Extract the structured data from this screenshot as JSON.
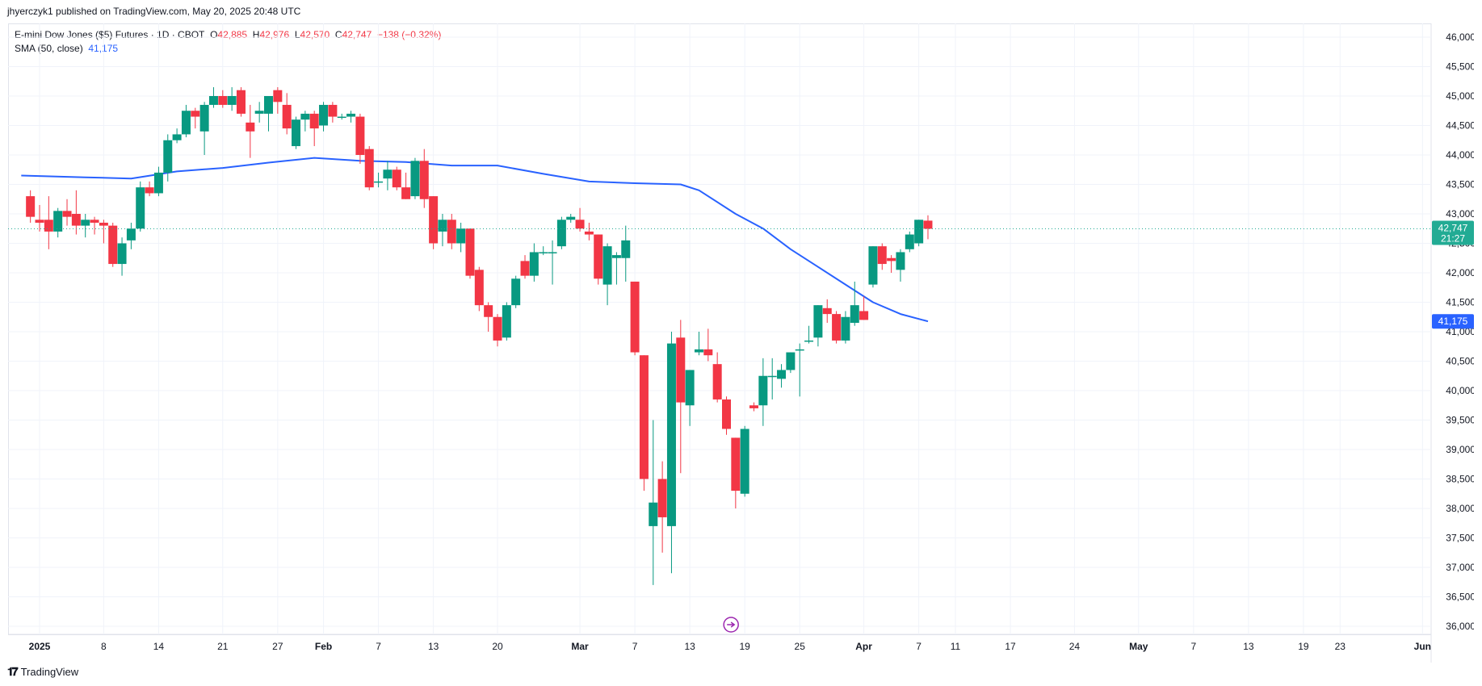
{
  "header": {
    "publisher": "jhyerczyk1 published on TradingView.com, May 20, 2025 20:48 UTC"
  },
  "legend": {
    "symbol": "E-mini Dow Jones ($5) Futures · 1D · CBOT",
    "o_label": "O",
    "o_value": "42,885",
    "h_label": "H",
    "h_value": "42,976",
    "l_label": "L",
    "l_value": "42,570",
    "c_label": "C",
    "c_value": "42,747",
    "change": "−138 (−0.32%)",
    "sma_label": "SMA (50, close)",
    "sma_value": "41,175"
  },
  "price_tag": {
    "price": "42,747",
    "countdown": "21:27"
  },
  "sma_tag": {
    "value": "41,175"
  },
  "footer": {
    "brand": "TradingView"
  },
  "colors": {
    "up": "#089981",
    "down": "#f23645",
    "sma": "#2962ff",
    "price_tag": "#22ab94",
    "grid": "#f0f3fa",
    "text": "#131722"
  },
  "chart_data": {
    "type": "candlestick",
    "title": "E-mini Dow Jones ($5) Futures · 1D · CBOT",
    "y_range": [
      36000,
      46000
    ],
    "y_ticks": [
      36000,
      36500,
      37000,
      37500,
      38000,
      38500,
      39000,
      39500,
      40000,
      40500,
      41000,
      41500,
      42000,
      42500,
      43000,
      43500,
      44000,
      44500,
      45000,
      45500,
      46000
    ],
    "y_tick_labels": [
      "36,000",
      "36,500",
      "37,000",
      "37,500",
      "38,000",
      "38,500",
      "39,000",
      "39,500",
      "40,000",
      "40,500",
      "41,000",
      "41,500",
      "42,000",
      "42,500",
      "43,000",
      "43,500",
      "44,000",
      "44,500",
      "45,000",
      "45,500",
      "46,000"
    ],
    "x_range_days": [
      -2,
      155
    ],
    "x_ticks": [
      {
        "d": 0,
        "label": "2025",
        "bold": true
      },
      {
        "d": 7,
        "label": "8"
      },
      {
        "d": 13,
        "label": "14"
      },
      {
        "d": 20,
        "label": "21"
      },
      {
        "d": 26,
        "label": "27"
      },
      {
        "d": 31,
        "label": "Feb",
        "bold": true
      },
      {
        "d": 37,
        "label": "7"
      },
      {
        "d": 43,
        "label": "13"
      },
      {
        "d": 50,
        "label": "20"
      },
      {
        "d": 59,
        "label": "Mar",
        "bold": true
      },
      {
        "d": 65,
        "label": "7"
      },
      {
        "d": 71,
        "label": "13"
      },
      {
        "d": 77,
        "label": "19"
      },
      {
        "d": 83,
        "label": "25"
      },
      {
        "d": 90,
        "label": "Apr",
        "bold": true
      },
      {
        "d": 96,
        "label": "7"
      },
      {
        "d": 100,
        "label": "11"
      },
      {
        "d": 106,
        "label": "17"
      },
      {
        "d": 113,
        "label": "24"
      },
      {
        "d": 120,
        "label": "May",
        "bold": true
      },
      {
        "d": 126,
        "label": "7"
      },
      {
        "d": 132,
        "label": "13"
      },
      {
        "d": 138,
        "label": "19"
      },
      {
        "d": 142,
        "label": "23"
      },
      {
        "d": 151,
        "label": "Jun",
        "bold": true
      }
    ],
    "last_price": 42747,
    "sma_last": 41175,
    "candles": [
      {
        "d": -1,
        "o": 43300,
        "h": 43400,
        "l": 42850,
        "c": 42950
      },
      {
        "d": 0,
        "o": 42900,
        "h": 43150,
        "l": 42700,
        "c": 42850
      },
      {
        "d": 1,
        "o": 42900,
        "h": 43300,
        "l": 42400,
        "c": 42700
      },
      {
        "d": 2,
        "o": 42700,
        "h": 43100,
        "l": 42600,
        "c": 43050
      },
      {
        "d": 3,
        "o": 43050,
        "h": 43250,
        "l": 42800,
        "c": 42950
      },
      {
        "d": 4,
        "o": 43000,
        "h": 43400,
        "l": 42650,
        "c": 42800
      },
      {
        "d": 5,
        "o": 42800,
        "h": 43000,
        "l": 42600,
        "c": 42900
      },
      {
        "d": 6,
        "o": 42900,
        "h": 42950,
        "l": 42650,
        "c": 42850
      },
      {
        "d": 7,
        "o": 42850,
        "h": 42900,
        "l": 42500,
        "c": 42800
      },
      {
        "d": 8,
        "o": 42800,
        "h": 42850,
        "l": 42100,
        "c": 42150
      },
      {
        "d": 9,
        "o": 42150,
        "h": 42600,
        "l": 41950,
        "c": 42500
      },
      {
        "d": 10,
        "o": 42550,
        "h": 42850,
        "l": 42400,
        "c": 42750
      },
      {
        "d": 11,
        "o": 42750,
        "h": 43550,
        "l": 42700,
        "c": 43450
      },
      {
        "d": 12,
        "o": 43450,
        "h": 43550,
        "l": 43300,
        "c": 43350
      },
      {
        "d": 13,
        "o": 43350,
        "h": 43800,
        "l": 43300,
        "c": 43700
      },
      {
        "d": 14,
        "o": 43700,
        "h": 44350,
        "l": 43550,
        "c": 44250
      },
      {
        "d": 15,
        "o": 44250,
        "h": 44450,
        "l": 44200,
        "c": 44350
      },
      {
        "d": 16,
        "o": 44350,
        "h": 44850,
        "l": 44300,
        "c": 44750
      },
      {
        "d": 17,
        "o": 44750,
        "h": 44800,
        "l": 44450,
        "c": 44650
      },
      {
        "d": 18,
        "o": 44400,
        "h": 44900,
        "l": 44000,
        "c": 44850
      },
      {
        "d": 19,
        "o": 44850,
        "h": 45150,
        "l": 44800,
        "c": 45000
      },
      {
        "d": 20,
        "o": 45000,
        "h": 45100,
        "l": 44800,
        "c": 44850
      },
      {
        "d": 21,
        "o": 44850,
        "h": 45150,
        "l": 44750,
        "c": 45000
      },
      {
        "d": 22,
        "o": 45100,
        "h": 45150,
        "l": 44650,
        "c": 44700
      },
      {
        "d": 23,
        "o": 44550,
        "h": 44850,
        "l": 43950,
        "c": 44400
      },
      {
        "d": 24,
        "o": 44700,
        "h": 44900,
        "l": 44550,
        "c": 44750
      },
      {
        "d": 25,
        "o": 44700,
        "h": 44950,
        "l": 44400,
        "c": 45000
      },
      {
        "d": 26,
        "o": 45100,
        "h": 45150,
        "l": 44700,
        "c": 44900
      },
      {
        "d": 27,
        "o": 44850,
        "h": 45050,
        "l": 44350,
        "c": 44450
      },
      {
        "d": 28,
        "o": 44150,
        "h": 44650,
        "l": 44100,
        "c": 44600
      },
      {
        "d": 29,
        "o": 44600,
        "h": 44750,
        "l": 44400,
        "c": 44700
      },
      {
        "d": 30,
        "o": 44700,
        "h": 44750,
        "l": 44150,
        "c": 44450
      },
      {
        "d": 31,
        "o": 44500,
        "h": 44900,
        "l": 44400,
        "c": 44850
      },
      {
        "d": 32,
        "o": 44850,
        "h": 44900,
        "l": 44550,
        "c": 44650
      },
      {
        "d": 33,
        "o": 44650,
        "h": 44700,
        "l": 44600,
        "c": 44650
      },
      {
        "d": 34,
        "o": 44650,
        "h": 44750,
        "l": 44550,
        "c": 44700
      },
      {
        "d": 35,
        "o": 44650,
        "h": 44700,
        "l": 43850,
        "c": 44000
      },
      {
        "d": 36,
        "o": 44100,
        "h": 44150,
        "l": 43400,
        "c": 43450
      },
      {
        "d": 37,
        "o": 43550,
        "h": 43700,
        "l": 43450,
        "c": 43550
      },
      {
        "d": 38,
        "o": 43600,
        "h": 43900,
        "l": 43400,
        "c": 43750
      },
      {
        "d": 39,
        "o": 43750,
        "h": 43800,
        "l": 43400,
        "c": 43450
      },
      {
        "d": 40,
        "o": 43450,
        "h": 43700,
        "l": 43250,
        "c": 43250
      },
      {
        "d": 41,
        "o": 43300,
        "h": 43950,
        "l": 43250,
        "c": 43900
      },
      {
        "d": 42,
        "o": 43900,
        "h": 44100,
        "l": 43100,
        "c": 43250
      },
      {
        "d": 43,
        "o": 43300,
        "h": 43200,
        "l": 42400,
        "c": 42500
      },
      {
        "d": 44,
        "o": 42700,
        "h": 43000,
        "l": 42450,
        "c": 42900
      },
      {
        "d": 45,
        "o": 42900,
        "h": 43000,
        "l": 42400,
        "c": 42500
      },
      {
        "d": 46,
        "o": 42500,
        "h": 42850,
        "l": 42350,
        "c": 42750
      },
      {
        "d": 47,
        "o": 42750,
        "h": 42750,
        "l": 41900,
        "c": 41950
      },
      {
        "d": 48,
        "o": 42050,
        "h": 42100,
        "l": 41350,
        "c": 41450
      },
      {
        "d": 49,
        "o": 41450,
        "h": 41500,
        "l": 41000,
        "c": 41250
      },
      {
        "d": 50,
        "o": 41250,
        "h": 41300,
        "l": 40750,
        "c": 40850
      },
      {
        "d": 51,
        "o": 40900,
        "h": 41500,
        "l": 40850,
        "c": 41450
      },
      {
        "d": 52,
        "o": 41450,
        "h": 41950,
        "l": 41400,
        "c": 41900
      },
      {
        "d": 53,
        "o": 42200,
        "h": 42300,
        "l": 41900,
        "c": 41950
      },
      {
        "d": 54,
        "o": 41950,
        "h": 42500,
        "l": 41850,
        "c": 42350
      },
      {
        "d": 55,
        "o": 42350,
        "h": 42450,
        "l": 42300,
        "c": 42350
      },
      {
        "d": 56,
        "o": 42350,
        "h": 42550,
        "l": 41800,
        "c": 42350
      },
      {
        "d": 57,
        "o": 42450,
        "h": 42950,
        "l": 42400,
        "c": 42900
      },
      {
        "d": 58,
        "o": 42900,
        "h": 43000,
        "l": 42850,
        "c": 42950
      },
      {
        "d": 59,
        "o": 42900,
        "h": 43100,
        "l": 42700,
        "c": 42750
      },
      {
        "d": 60,
        "o": 42700,
        "h": 42850,
        "l": 42550,
        "c": 42650
      },
      {
        "d": 61,
        "o": 42650,
        "h": 42600,
        "l": 41800,
        "c": 41900
      },
      {
        "d": 62,
        "o": 41800,
        "h": 42500,
        "l": 41450,
        "c": 42450
      },
      {
        "d": 63,
        "o": 42250,
        "h": 42350,
        "l": 41800,
        "c": 42300
      },
      {
        "d": 64,
        "o": 42250,
        "h": 42800,
        "l": 41850,
        "c": 42550
      },
      {
        "d": 65,
        "o": 41850,
        "h": 41850,
        "l": 40600,
        "c": 40650
      },
      {
        "d": 66,
        "o": 40600,
        "h": 40600,
        "l": 38300,
        "c": 38500
      },
      {
        "d": 67,
        "o": 37700,
        "h": 39500,
        "l": 36700,
        "c": 38100
      },
      {
        "d": 68,
        "o": 38500,
        "h": 38800,
        "l": 37250,
        "c": 37850
      },
      {
        "d": 69,
        "o": 37700,
        "h": 41000,
        "l": 36900,
        "c": 40800
      },
      {
        "d": 70,
        "o": 40900,
        "h": 41200,
        "l": 38600,
        "c": 39800
      },
      {
        "d": 71,
        "o": 39750,
        "h": 40300,
        "l": 39400,
        "c": 40350
      },
      {
        "d": 72,
        "o": 40650,
        "h": 41000,
        "l": 40600,
        "c": 40700
      },
      {
        "d": 73,
        "o": 40700,
        "h": 41050,
        "l": 40500,
        "c": 40600
      },
      {
        "d": 74,
        "o": 40450,
        "h": 40650,
        "l": 39800,
        "c": 39850
      },
      {
        "d": 75,
        "o": 39850,
        "h": 39900,
        "l": 39250,
        "c": 39350
      },
      {
        "d": 76,
        "o": 39200,
        "h": 39200,
        "l": 38000,
        "c": 38300
      },
      {
        "d": 77,
        "o": 38250,
        "h": 39400,
        "l": 38200,
        "c": 39350
      },
      {
        "d": 78,
        "o": 39750,
        "h": 39800,
        "l": 39650,
        "c": 39700
      },
      {
        "d": 79,
        "o": 39750,
        "h": 40550,
        "l": 39400,
        "c": 40250
      },
      {
        "d": 80,
        "o": 40250,
        "h": 40550,
        "l": 39850,
        "c": 40250
      },
      {
        "d": 81,
        "o": 40200,
        "h": 40450,
        "l": 40050,
        "c": 40350
      },
      {
        "d": 82,
        "o": 40350,
        "h": 40650,
        "l": 40300,
        "c": 40650
      },
      {
        "d": 83,
        "o": 40700,
        "h": 40800,
        "l": 39900,
        "c": 40700
      },
      {
        "d": 84,
        "o": 40850,
        "h": 41100,
        "l": 40800,
        "c": 40850
      },
      {
        "d": 85,
        "o": 40900,
        "h": 41450,
        "l": 40750,
        "c": 41450
      },
      {
        "d": 86,
        "o": 41400,
        "h": 41550,
        "l": 41150,
        "c": 41300
      },
      {
        "d": 87,
        "o": 41300,
        "h": 41350,
        "l": 40800,
        "c": 40850
      },
      {
        "d": 88,
        "o": 40850,
        "h": 41350,
        "l": 40800,
        "c": 41250
      },
      {
        "d": 89,
        "o": 41150,
        "h": 41850,
        "l": 41100,
        "c": 41450
      },
      {
        "d": 90,
        "o": 41350,
        "h": 41600,
        "l": 41200,
        "c": 41200
      },
      {
        "d": 91,
        "o": 41800,
        "h": 42450,
        "l": 41750,
        "c": 42450
      },
      {
        "d": 92,
        "o": 42450,
        "h": 42500,
        "l": 42050,
        "c": 42150
      },
      {
        "d": 93,
        "o": 42250,
        "h": 42300,
        "l": 42000,
        "c": 42200
      },
      {
        "d": 94,
        "o": 42050,
        "h": 42400,
        "l": 41850,
        "c": 42350
      },
      {
        "d": 95,
        "o": 42400,
        "h": 42700,
        "l": 42350,
        "c": 42650
      },
      {
        "d": 96,
        "o": 42500,
        "h": 42900,
        "l": 42450,
        "c": 42900
      },
      {
        "d": 97,
        "o": 42885,
        "h": 42976,
        "l": 42570,
        "c": 42747
      }
    ],
    "sma": [
      {
        "d": -2,
        "v": 43650
      },
      {
        "d": 5,
        "v": 43620
      },
      {
        "d": 10,
        "v": 43600
      },
      {
        "d": 15,
        "v": 43720
      },
      {
        "d": 20,
        "v": 43780
      },
      {
        "d": 25,
        "v": 43870
      },
      {
        "d": 30,
        "v": 43950
      },
      {
        "d": 35,
        "v": 43900
      },
      {
        "d": 40,
        "v": 43880
      },
      {
        "d": 45,
        "v": 43820
      },
      {
        "d": 50,
        "v": 43820
      },
      {
        "d": 55,
        "v": 43680
      },
      {
        "d": 60,
        "v": 43550
      },
      {
        "d": 65,
        "v": 43520
      },
      {
        "d": 70,
        "v": 43500
      },
      {
        "d": 72,
        "v": 43400
      },
      {
        "d": 76,
        "v": 43000
      },
      {
        "d": 79,
        "v": 42750
      },
      {
        "d": 82,
        "v": 42400
      },
      {
        "d": 85,
        "v": 42100
      },
      {
        "d": 88,
        "v": 41800
      },
      {
        "d": 91,
        "v": 41500
      },
      {
        "d": 94,
        "v": 41300
      },
      {
        "d": 97,
        "v": 41175
      }
    ]
  }
}
